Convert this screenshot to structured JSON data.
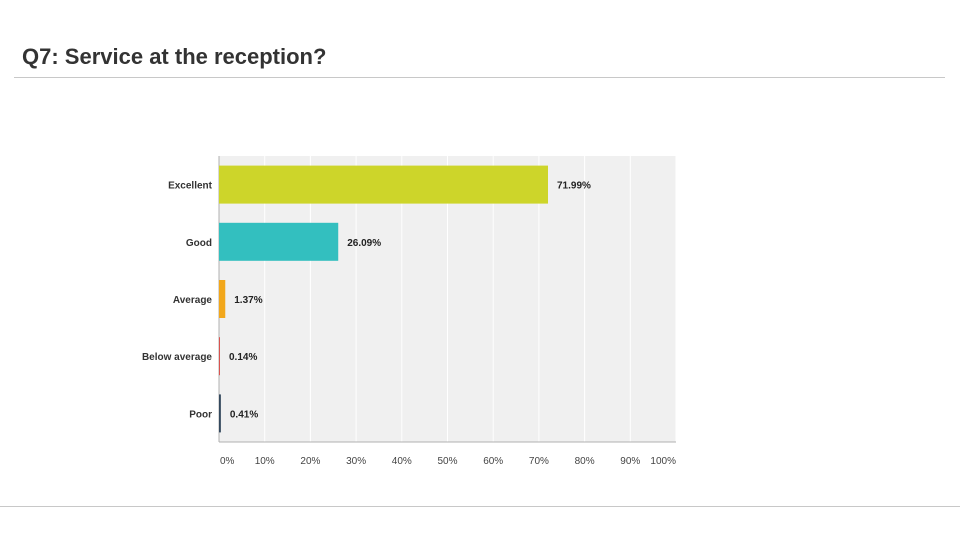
{
  "slide": {
    "title": "Q7:  Service at the reception?"
  },
  "chart_data": {
    "type": "bar",
    "orientation": "horizontal",
    "title": "Q7:  Service at the reception?",
    "xlabel": "",
    "ylabel": "",
    "categories": [
      "Excellent",
      "Good",
      "Average",
      "Below average",
      "Poor"
    ],
    "values": [
      71.99,
      26.09,
      1.37,
      0.14,
      0.41
    ],
    "value_labels": [
      "71.99%",
      "26.09%",
      "1.37%",
      "0.14%",
      "0.41%"
    ],
    "colors": [
      "#cdd52a",
      "#33bfbf",
      "#f2a71b",
      "#d9534f",
      "#34495e"
    ],
    "xlim": [
      0,
      100
    ],
    "x_ticks": [
      "0%",
      "10%",
      "20%",
      "30%",
      "40%",
      "50%",
      "60%",
      "70%",
      "80%",
      "90%",
      "100%"
    ],
    "grid": true,
    "background": "#f0f0f0"
  }
}
